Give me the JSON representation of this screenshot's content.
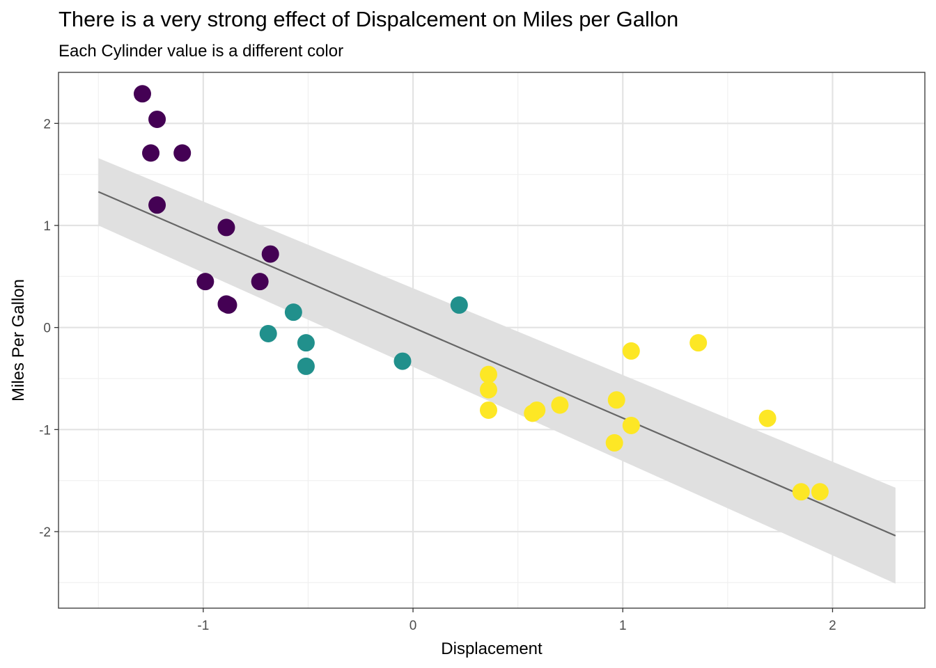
{
  "chart_data": {
    "type": "scatter",
    "title": "There is a very strong effect of Dispalcement on Miles per Gallon",
    "subtitle": "Each Cylinder value is a different color",
    "xlabel": "Displacement",
    "ylabel": "Miles Per Gallon",
    "xlim": [
      -1.69,
      2.44
    ],
    "ylim": [
      -2.75,
      2.5
    ],
    "x_ticks": [
      -1,
      0,
      1,
      2
    ],
    "y_ticks": [
      -2,
      -1,
      0,
      1,
      2
    ],
    "x_tick_labels": [
      "-1",
      "0",
      "1",
      "2"
    ],
    "y_tick_labels": [
      "-2",
      "-1",
      "0",
      "1",
      "2"
    ],
    "grid": true,
    "legend": "none",
    "series": [
      {
        "color": "#440154",
        "points": [
          [
            -1.29,
            2.29
          ],
          [
            -1.22,
            2.04
          ],
          [
            -1.25,
            1.71
          ],
          [
            -1.1,
            1.71
          ],
          [
            -1.22,
            1.2
          ],
          [
            -0.89,
            0.98
          ],
          [
            -0.68,
            0.72
          ],
          [
            -0.99,
            0.45
          ],
          [
            -0.73,
            0.45
          ],
          [
            -0.89,
            0.23
          ],
          [
            -0.88,
            0.22
          ]
        ]
      },
      {
        "color": "#21908C",
        "points": [
          [
            -0.57,
            0.15
          ],
          [
            -0.69,
            -0.06
          ],
          [
            -0.51,
            -0.15
          ],
          [
            -0.51,
            -0.38
          ],
          [
            -0.05,
            -0.33
          ],
          [
            0.22,
            0.22
          ]
        ]
      },
      {
        "color": "#FDE725",
        "points": [
          [
            0.36,
            -0.46
          ],
          [
            0.36,
            -0.61
          ],
          [
            0.36,
            -0.81
          ],
          [
            0.57,
            -0.84
          ],
          [
            0.59,
            -0.81
          ],
          [
            0.7,
            -0.76
          ],
          [
            0.97,
            -0.71
          ],
          [
            1.04,
            -0.23
          ],
          [
            1.04,
            -0.96
          ],
          [
            0.96,
            -1.13
          ],
          [
            1.36,
            -0.15
          ],
          [
            1.69,
            -0.89
          ],
          [
            1.85,
            -1.61
          ],
          [
            1.94,
            -1.61
          ]
        ]
      }
    ],
    "fit_line": {
      "x": [
        -1.5,
        2.3
      ],
      "y": [
        1.33,
        -2.04
      ],
      "color": "#666666",
      "ci_upper": [
        1.66,
        -1.57
      ],
      "ci_lower": [
        1.0,
        -2.51
      ],
      "ci_color": "#e0e0e0"
    }
  }
}
